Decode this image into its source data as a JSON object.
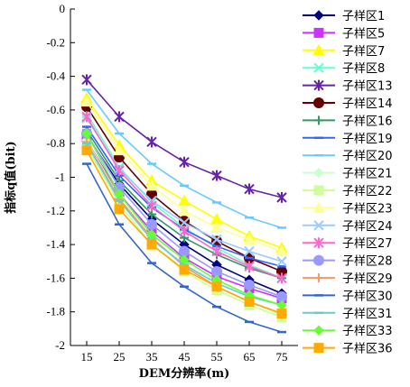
{
  "chart_data": {
    "type": "line",
    "title": "",
    "xlabel": "DEM分辨率(m)",
    "ylabel": "指标q值(bit)",
    "x": [
      15,
      25,
      35,
      45,
      55,
      65,
      75
    ],
    "ylim": [
      -2,
      0
    ],
    "yticks": [
      0,
      -0.2,
      -0.4,
      -0.6,
      -0.8,
      -1,
      -1.2,
      -1.4,
      -1.6,
      -1.8,
      -2
    ],
    "ytick_labels": [
      "0",
      "-0.2",
      "-0.4",
      "-0.6",
      "-0.8",
      "-1",
      "-1.2",
      "-1.4",
      "-1.6",
      "-1.8",
      "-2"
    ],
    "grid": false,
    "legend_position": "right",
    "series": [
      {
        "name": "子样区1",
        "color": "#000080",
        "marker": "diamond",
        "values": [
          -0.75,
          -1.04,
          -1.25,
          -1.4,
          -1.52,
          -1.61,
          -1.69
        ]
      },
      {
        "name": "子样区5",
        "color": "#cc33ff",
        "marker": "square",
        "values": [
          -0.78,
          -1.1,
          -1.32,
          -1.48,
          -1.59,
          -1.66,
          -1.72
        ]
      },
      {
        "name": "子样区7",
        "color": "#ffff00",
        "marker": "triangle",
        "values": [
          -0.53,
          -0.81,
          -1.02,
          -1.14,
          -1.25,
          -1.35,
          -1.42
        ]
      },
      {
        "name": "子样区8",
        "color": "#66ffcc",
        "marker": "x",
        "values": [
          -0.62,
          -0.94,
          -1.15,
          -1.3,
          -1.42,
          -1.52,
          -1.6
        ]
      },
      {
        "name": "子样区13",
        "color": "#6622aa",
        "marker": "star",
        "values": [
          -0.42,
          -0.64,
          -0.79,
          -0.91,
          -0.99,
          -1.07,
          -1.12
        ]
      },
      {
        "name": "子样区14",
        "color": "#660000",
        "marker": "circle",
        "values": [
          -0.58,
          -0.88,
          -1.1,
          -1.26,
          -1.38,
          -1.48,
          -1.56
        ]
      },
      {
        "name": "子样区16",
        "color": "#339966",
        "marker": "plus",
        "values": [
          -0.72,
          -1.02,
          -1.22,
          -1.36,
          -1.46,
          -1.54,
          -1.6
        ]
      },
      {
        "name": "子样区19",
        "color": "#3366ff",
        "marker": "dash",
        "values": [
          -0.7,
          -0.99,
          -1.18,
          -1.31,
          -1.41,
          -1.48,
          -1.53
        ]
      },
      {
        "name": "子样区20",
        "color": "#66ccff",
        "marker": "dash",
        "values": [
          -0.48,
          -0.74,
          -0.92,
          -1.05,
          -1.15,
          -1.24,
          -1.3
        ]
      },
      {
        "name": "子样区21",
        "color": "#ccffcc",
        "marker": "diamond",
        "values": [
          -0.78,
          -1.12,
          -1.36,
          -1.52,
          -1.65,
          -1.74,
          -1.82
        ]
      },
      {
        "name": "子样区22",
        "color": "#ccff99",
        "marker": "square",
        "values": [
          -0.82,
          -1.16,
          -1.4,
          -1.56,
          -1.67,
          -1.76,
          -1.83
        ]
      },
      {
        "name": "子样区23",
        "color": "#ffff99",
        "marker": "triangle",
        "values": [
          -0.55,
          -0.84,
          -1.05,
          -1.2,
          -1.3,
          -1.37,
          -1.44
        ]
      },
      {
        "name": "子样区24",
        "color": "#99ccff",
        "marker": "x",
        "values": [
          -0.65,
          -0.95,
          -1.14,
          -1.27,
          -1.37,
          -1.44,
          -1.5
        ]
      },
      {
        "name": "子样区27",
        "color": "#ff66cc",
        "marker": "star",
        "values": [
          -0.64,
          -0.96,
          -1.17,
          -1.32,
          -1.44,
          -1.53,
          -1.6
        ]
      },
      {
        "name": "子样区28",
        "color": "#9999ff",
        "marker": "circle",
        "values": [
          -0.74,
          -1.06,
          -1.28,
          -1.44,
          -1.56,
          -1.64,
          -1.71
        ]
      },
      {
        "name": "子样区29",
        "color": "#ff9966",
        "marker": "plus",
        "values": [
          -0.79,
          -1.13,
          -1.36,
          -1.53,
          -1.65,
          -1.74,
          -1.81
        ]
      },
      {
        "name": "子样区30",
        "color": "#3366cc",
        "marker": "dash",
        "values": [
          -0.92,
          -1.28,
          -1.51,
          -1.65,
          -1.77,
          -1.86,
          -1.92
        ]
      },
      {
        "name": "子样区31",
        "color": "#66cccc",
        "marker": "dash",
        "values": [
          -0.8,
          -1.14,
          -1.37,
          -1.52,
          -1.63,
          -1.71,
          -1.76
        ]
      },
      {
        "name": "子样区33",
        "color": "#66ff33",
        "marker": "diamond",
        "values": [
          -0.74,
          -1.1,
          -1.34,
          -1.49,
          -1.61,
          -1.7,
          -1.76
        ]
      },
      {
        "name": "子样区36",
        "color": "#ffaa00",
        "marker": "square",
        "values": [
          -0.84,
          -1.19,
          -1.4,
          -1.55,
          -1.65,
          -1.74,
          -1.81
        ]
      }
    ]
  }
}
